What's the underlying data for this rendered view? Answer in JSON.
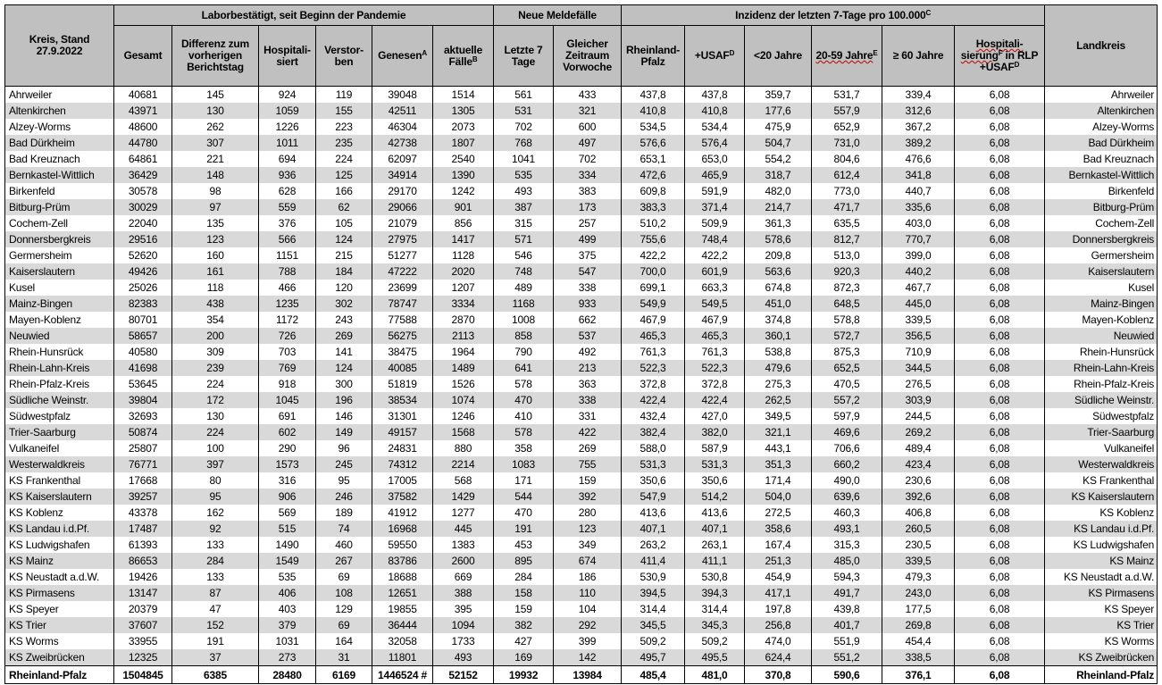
{
  "header": {
    "kreis": "Kreis, Stand 27.9.2022",
    "group_labor": "Laborbestätigt, seit Beginn der Pandemie",
    "group_neue": "Neue Meldefälle",
    "group_inzidenz": "Inzidenz der letzten 7-Tage pro 100.000",
    "group_inzidenz_sup": "C",
    "landkreis": "Landkreis",
    "columns": [
      {
        "label": "Gesamt",
        "sup": ""
      },
      {
        "label": "Differenz zum vorherigen Berichtstag",
        "sup": ""
      },
      {
        "label": "Hospitali-siert",
        "sup": ""
      },
      {
        "label": "Verstor-ben",
        "sup": ""
      },
      {
        "label": "Genesen",
        "sup": "A"
      },
      {
        "label": "aktuelle Fälle",
        "sup": "B"
      },
      {
        "label": "Letzte 7 Tage",
        "sup": ""
      },
      {
        "label": "Gleicher Zeitraum Vorwoche",
        "sup": ""
      },
      {
        "label": "Rheinland-Pfalz",
        "sup": ""
      },
      {
        "label": "+USAF",
        "sup": "D"
      },
      {
        "label": "<20 Jahre",
        "sup": ""
      },
      {
        "label": "20-59 Jahre",
        "sup": "E"
      },
      {
        "label": "≥ 60 Jahre",
        "sup": ""
      },
      {
        "label": "Hospitali-sierung",
        "sup": "F",
        "after": " in RLP +USAF",
        "after_sup": "D"
      }
    ]
  },
  "rows": [
    [
      "Ahrweiler",
      "40681",
      "145",
      "924",
      "119",
      "39048",
      "1514",
      "561",
      "433",
      "437,8",
      "437,8",
      "359,7",
      "531,7",
      "339,4",
      "6,08"
    ],
    [
      "Altenkirchen",
      "43971",
      "130",
      "1059",
      "155",
      "42511",
      "1305",
      "531",
      "321",
      "410,8",
      "410,8",
      "177,6",
      "557,9",
      "312,6",
      "6,08"
    ],
    [
      "Alzey-Worms",
      "48600",
      "262",
      "1226",
      "223",
      "46304",
      "2073",
      "702",
      "600",
      "534,5",
      "534,4",
      "475,9",
      "652,9",
      "367,2",
      "6,08"
    ],
    [
      "Bad Dürkheim",
      "44780",
      "307",
      "1011",
      "235",
      "42738",
      "1807",
      "768",
      "497",
      "576,6",
      "576,4",
      "504,7",
      "731,0",
      "389,2",
      "6,08"
    ],
    [
      "Bad Kreuznach",
      "64861",
      "221",
      "694",
      "224",
      "62097",
      "2540",
      "1041",
      "702",
      "653,1",
      "653,0",
      "554,2",
      "804,6",
      "476,6",
      "6,08"
    ],
    [
      "Bernkastel-Wittlich",
      "36429",
      "148",
      "936",
      "125",
      "34914",
      "1390",
      "535",
      "334",
      "472,6",
      "465,9",
      "318,7",
      "612,4",
      "341,8",
      "6,08"
    ],
    [
      "Birkenfeld",
      "30578",
      "98",
      "628",
      "166",
      "29170",
      "1242",
      "493",
      "383",
      "609,8",
      "591,9",
      "482,0",
      "773,0",
      "440,7",
      "6,08"
    ],
    [
      "Bitburg-Prüm",
      "30029",
      "97",
      "559",
      "62",
      "29066",
      "901",
      "387",
      "173",
      "383,3",
      "371,4",
      "214,7",
      "471,7",
      "335,6",
      "6,08"
    ],
    [
      "Cochem-Zell",
      "22040",
      "135",
      "376",
      "105",
      "21079",
      "856",
      "315",
      "257",
      "510,2",
      "509,9",
      "361,3",
      "635,5",
      "403,0",
      "6,08"
    ],
    [
      "Donnersbergkreis",
      "29516",
      "123",
      "566",
      "124",
      "27975",
      "1417",
      "571",
      "499",
      "755,6",
      "748,4",
      "578,6",
      "812,7",
      "770,7",
      "6,08"
    ],
    [
      "Germersheim",
      "52620",
      "160",
      "1151",
      "215",
      "51277",
      "1128",
      "546",
      "375",
      "422,2",
      "422,2",
      "209,8",
      "513,0",
      "399,0",
      "6,08"
    ],
    [
      "Kaiserslautern",
      "49426",
      "161",
      "788",
      "184",
      "47222",
      "2020",
      "748",
      "547",
      "700,0",
      "601,9",
      "563,6",
      "920,3",
      "440,2",
      "6,08"
    ],
    [
      "Kusel",
      "25026",
      "118",
      "466",
      "120",
      "23699",
      "1207",
      "489",
      "338",
      "699,1",
      "663,3",
      "674,8",
      "872,3",
      "467,7",
      "6,08"
    ],
    [
      "Mainz-Bingen",
      "82383",
      "438",
      "1235",
      "302",
      "78747",
      "3334",
      "1168",
      "933",
      "549,9",
      "549,5",
      "451,0",
      "648,5",
      "445,0",
      "6,08"
    ],
    [
      "Mayen-Koblenz",
      "80701",
      "354",
      "1172",
      "243",
      "77588",
      "2870",
      "1008",
      "662",
      "467,9",
      "467,9",
      "374,8",
      "578,8",
      "339,5",
      "6,08"
    ],
    [
      "Neuwied",
      "58657",
      "200",
      "726",
      "269",
      "56275",
      "2113",
      "858",
      "537",
      "465,3",
      "465,3",
      "360,1",
      "572,7",
      "356,5",
      "6,08"
    ],
    [
      "Rhein-Hunsrück",
      "40580",
      "309",
      "703",
      "141",
      "38475",
      "1964",
      "790",
      "492",
      "761,3",
      "761,3",
      "538,8",
      "875,3",
      "710,9",
      "6,08"
    ],
    [
      "Rhein-Lahn-Kreis",
      "41698",
      "239",
      "769",
      "124",
      "40085",
      "1489",
      "641",
      "213",
      "522,3",
      "522,3",
      "479,6",
      "652,5",
      "344,5",
      "6,08"
    ],
    [
      "Rhein-Pfalz-Kreis",
      "53645",
      "224",
      "918",
      "300",
      "51819",
      "1526",
      "578",
      "363",
      "372,8",
      "372,8",
      "275,3",
      "470,5",
      "276,5",
      "6,08"
    ],
    [
      "Südliche Weinstr.",
      "39804",
      "172",
      "1045",
      "196",
      "38534",
      "1074",
      "470",
      "338",
      "422,4",
      "422,4",
      "262,5",
      "557,2",
      "303,9",
      "6,08"
    ],
    [
      "Südwestpfalz",
      "32693",
      "130",
      "691",
      "146",
      "31301",
      "1246",
      "410",
      "331",
      "432,4",
      "427,0",
      "349,5",
      "597,9",
      "244,5",
      "6,08"
    ],
    [
      "Trier-Saarburg",
      "50874",
      "224",
      "602",
      "149",
      "49157",
      "1568",
      "578",
      "422",
      "382,4",
      "382,0",
      "321,1",
      "469,6",
      "269,2",
      "6,08"
    ],
    [
      "Vulkaneifel",
      "25807",
      "100",
      "290",
      "96",
      "24831",
      "880",
      "358",
      "269",
      "588,0",
      "587,9",
      "443,1",
      "706,6",
      "489,4",
      "6,08"
    ],
    [
      "Westerwaldkreis",
      "76771",
      "397",
      "1573",
      "245",
      "74312",
      "2214",
      "1083",
      "755",
      "531,3",
      "531,3",
      "351,3",
      "660,2",
      "423,4",
      "6,08"
    ],
    [
      "KS Frankenthal",
      "17668",
      "80",
      "316",
      "95",
      "17005",
      "568",
      "171",
      "159",
      "350,6",
      "350,6",
      "171,4",
      "490,0",
      "230,6",
      "6,08"
    ],
    [
      "KS Kaiserslautern",
      "39257",
      "95",
      "906",
      "246",
      "37582",
      "1429",
      "544",
      "392",
      "547,9",
      "514,2",
      "504,0",
      "639,6",
      "392,6",
      "6,08"
    ],
    [
      "KS Koblenz",
      "43378",
      "162",
      "569",
      "189",
      "41912",
      "1277",
      "470",
      "280",
      "413,6",
      "413,6",
      "272,5",
      "460,3",
      "406,8",
      "6,08"
    ],
    [
      "KS Landau i.d.Pf.",
      "17487",
      "92",
      "515",
      "74",
      "16968",
      "445",
      "191",
      "123",
      "407,1",
      "407,1",
      "358,6",
      "493,1",
      "260,5",
      "6,08"
    ],
    [
      "KS Ludwigshafen",
      "61393",
      "133",
      "1490",
      "460",
      "59550",
      "1383",
      "453",
      "349",
      "263,2",
      "263,1",
      "167,4",
      "315,3",
      "230,5",
      "6,08"
    ],
    [
      "KS Mainz",
      "86653",
      "284",
      "1549",
      "267",
      "83786",
      "2600",
      "895",
      "674",
      "411,4",
      "411,1",
      "251,3",
      "485,0",
      "339,5",
      "6,08"
    ],
    [
      "KS Neustadt a.d.W.",
      "19426",
      "133",
      "535",
      "69",
      "18688",
      "669",
      "284",
      "186",
      "530,9",
      "530,8",
      "454,9",
      "594,3",
      "479,3",
      "6,08"
    ],
    [
      "KS Pirmasens",
      "13147",
      "87",
      "406",
      "108",
      "12651",
      "388",
      "158",
      "110",
      "394,5",
      "394,3",
      "417,1",
      "491,7",
      "243,0",
      "6,08"
    ],
    [
      "KS Speyer",
      "20379",
      "47",
      "403",
      "129",
      "19855",
      "395",
      "159",
      "104",
      "314,4",
      "314,4",
      "197,8",
      "439,8",
      "177,5",
      "6,08"
    ],
    [
      "KS Trier",
      "37607",
      "152",
      "379",
      "69",
      "36444",
      "1094",
      "382",
      "292",
      "345,5",
      "345,3",
      "256,8",
      "401,7",
      "269,8",
      "6,08"
    ],
    [
      "KS Worms",
      "33955",
      "191",
      "1031",
      "164",
      "32058",
      "1733",
      "427",
      "399",
      "509,2",
      "509,2",
      "474,0",
      "551,9",
      "454,4",
      "6,08"
    ],
    [
      "KS Zweibrücken",
      "12325",
      "37",
      "273",
      "31",
      "11801",
      "493",
      "169",
      "142",
      "495,7",
      "495,5",
      "624,4",
      "551,2",
      "338,5",
      "6,08"
    ]
  ],
  "total": [
    "Rheinland-Pfalz",
    "1504845",
    "6385",
    "28480",
    "6169",
    "1446524 #",
    "52152",
    "19932",
    "13984",
    "485,4",
    "481,0",
    "370,8",
    "590,6",
    "376,1",
    "6,08"
  ],
  "colors": {
    "header_bg": "#c0c0c0",
    "stripe_bg": "#d9d9d9",
    "border": "#000000"
  }
}
